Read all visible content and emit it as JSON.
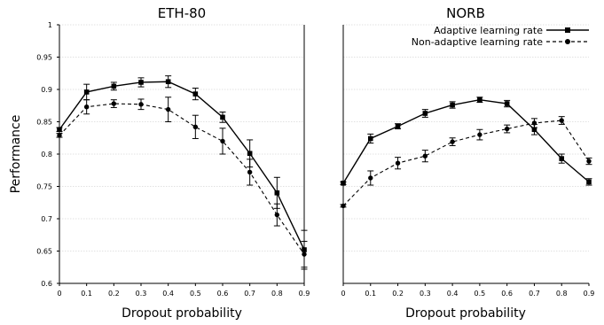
{
  "chart_data": [
    {
      "type": "line",
      "title": "ETH-80",
      "xlabel": "Dropout probability",
      "ylabel": "Performance",
      "xlim": [
        0,
        0.9
      ],
      "ylim": [
        0.6,
        1
      ],
      "x": [
        0,
        0.1,
        0.2,
        0.3,
        0.4,
        0.5,
        0.6,
        0.7,
        0.8,
        0.9
      ],
      "xticks": [
        "0",
        "0.1",
        "0.2",
        "0.3",
        "0.4",
        "0.5",
        "0.6",
        "0.7",
        "0.8",
        "0.9"
      ],
      "yticks": [
        "0.6",
        "0.65",
        "0.7",
        "0.75",
        "0.8",
        "0.85",
        "0.9",
        "0.95",
        "1"
      ],
      "grid": true,
      "series": [
        {
          "name": "Adaptive learning rate",
          "style": "solid",
          "marker": "square",
          "color": "#000000",
          "values": [
            0.838,
            0.896,
            0.905,
            0.911,
            0.912,
            0.893,
            0.857,
            0.801,
            0.74,
            0.652
          ],
          "error": [
            0.003,
            0.012,
            0.006,
            0.007,
            0.009,
            0.009,
            0.008,
            0.021,
            0.024,
            0.03
          ]
        },
        {
          "name": "Non-adaptive learning rate",
          "style": "dashed",
          "marker": "circle",
          "color": "#000000",
          "values": [
            0.829,
            0.873,
            0.878,
            0.877,
            0.869,
            0.842,
            0.82,
            0.772,
            0.706,
            0.645
          ],
          "error": [
            0.003,
            0.011,
            0.006,
            0.008,
            0.019,
            0.018,
            0.02,
            0.02,
            0.017,
            0.02
          ]
        }
      ]
    },
    {
      "type": "line",
      "title": "NORB",
      "xlabel": "Dropout probability",
      "ylabel": "",
      "xlim": [
        0,
        0.9
      ],
      "ylim": [
        0.6,
        1
      ],
      "x": [
        0,
        0.1,
        0.2,
        0.3,
        0.4,
        0.5,
        0.6,
        0.7,
        0.8,
        0.9
      ],
      "xticks": [
        "0",
        "0.1",
        "0.2",
        "0.3",
        "0.4",
        "0.5",
        "0.6",
        "0.7",
        "0.8",
        "0.9"
      ],
      "yticks": [],
      "grid": true,
      "legend": "top-right",
      "series": [
        {
          "name": "Adaptive learning rate",
          "style": "solid",
          "marker": "square",
          "color": "#000000",
          "values": [
            0.755,
            0.824,
            0.843,
            0.863,
            0.876,
            0.884,
            0.878,
            0.838,
            0.793,
            0.757
          ],
          "error": [
            0.002,
            0.007,
            0.004,
            0.006,
            0.005,
            0.004,
            0.005,
            0.008,
            0.007,
            0.005
          ]
        },
        {
          "name": "Non-adaptive learning rate",
          "style": "dashed",
          "marker": "circle",
          "color": "#000000",
          "values": [
            0.72,
            0.763,
            0.786,
            0.797,
            0.819,
            0.83,
            0.839,
            0.848,
            0.852,
            0.789
          ],
          "error": [
            0.002,
            0.011,
            0.009,
            0.009,
            0.006,
            0.008,
            0.006,
            0.007,
            0.006,
            0.005
          ]
        }
      ]
    }
  ]
}
